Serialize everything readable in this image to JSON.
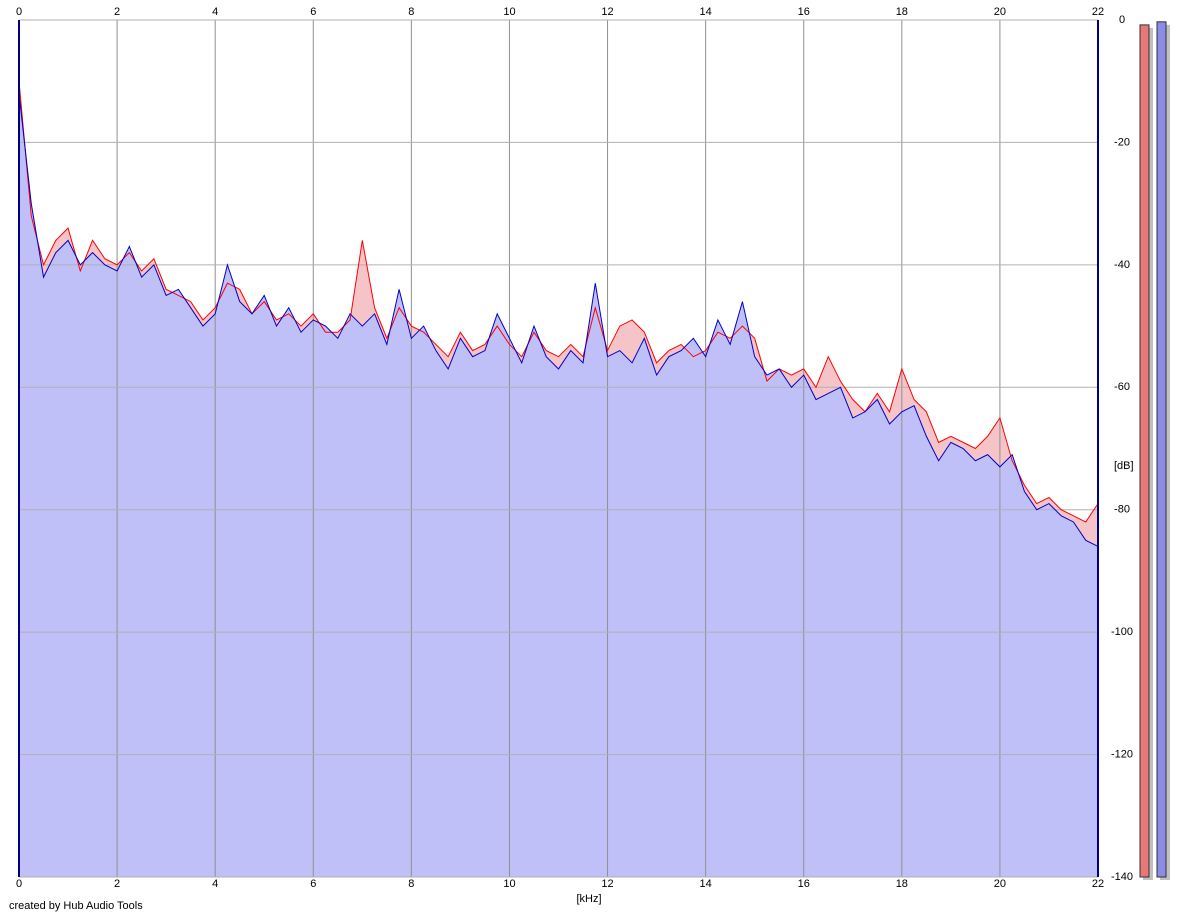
{
  "chart_data": {
    "type": "area",
    "x_label": "[kHz]",
    "y_label": "[dB]",
    "credit": "created by Hub Audio Tools",
    "x": [
      0,
      0.25,
      0.5,
      0.75,
      1,
      1.25,
      1.5,
      1.75,
      2,
      2.25,
      2.5,
      2.75,
      3,
      3.25,
      3.5,
      3.75,
      4,
      4.25,
      4.5,
      4.75,
      5,
      5.25,
      5.5,
      5.75,
      6,
      6.25,
      6.5,
      6.75,
      7,
      7.25,
      7.5,
      7.75,
      8,
      8.25,
      8.5,
      8.75,
      9,
      9.25,
      9.5,
      9.75,
      10,
      10.25,
      10.5,
      10.75,
      11,
      11.25,
      11.5,
      11.75,
      12,
      12.25,
      12.5,
      12.75,
      13,
      13.25,
      13.5,
      13.75,
      14,
      14.25,
      14.5,
      14.75,
      15,
      15.25,
      15.5,
      15.75,
      16,
      16.25,
      16.5,
      16.75,
      17,
      17.25,
      17.5,
      17.75,
      18,
      18.25,
      18.5,
      18.75,
      19,
      19.25,
      19.5,
      19.75,
      20,
      20.25,
      20.5,
      20.75,
      21,
      21.25,
      21.5,
      21.75,
      22
    ],
    "series": [
      {
        "color": "#ff0000",
        "fill": "#f4c4c8",
        "values": [
          -10,
          -32,
          -40,
          -36,
          -34,
          -41,
          -36,
          -39,
          -40,
          -38,
          -41,
          -39,
          -44,
          -45,
          -46,
          -49,
          -47,
          -43,
          -44,
          -48,
          -46,
          -49,
          -48,
          -50,
          -48,
          -51,
          -51,
          -49,
          -36,
          -47,
          -52,
          -47,
          -50,
          -51,
          -53,
          -55,
          -51,
          -54,
          -53,
          -50,
          -53,
          -55,
          -51,
          -54,
          -55,
          -53,
          -55,
          -47,
          -54,
          -50,
          -49,
          -51,
          -56,
          -54,
          -53,
          -55,
          -54,
          -51,
          -52,
          -50,
          -52,
          -59,
          -57,
          -58,
          -57,
          -60,
          -55,
          -59,
          -62,
          -64,
          -61,
          -64,
          -57,
          -62,
          -64,
          -69,
          -68,
          -69,
          -70,
          -68,
          -65,
          -72,
          -76,
          -79,
          -78,
          -80,
          -81,
          -82,
          -79
        ]
      },
      {
        "color": "#0000c8",
        "fill": "#c0c0f8",
        "values": [
          -12,
          -30,
          -42,
          -38,
          -36,
          -40,
          -38,
          -40,
          -41,
          -37,
          -42,
          -40,
          -45,
          -44,
          -47,
          -50,
          -48,
          -40,
          -46,
          -48,
          -45,
          -50,
          -47,
          -51,
          -49,
          -50,
          -52,
          -48,
          -50,
          -48,
          -53,
          -44,
          -52,
          -50,
          -54,
          -57,
          -52,
          -55,
          -54,
          -48,
          -52,
          -56,
          -50,
          -55,
          -57,
          -54,
          -56,
          -43,
          -55,
          -54,
          -56,
          -52,
          -58,
          -55,
          -54,
          -52,
          -55,
          -49,
          -53,
          -46,
          -55,
          -58,
          -57,
          -60,
          -58,
          -62,
          -61,
          -60,
          -65,
          -64,
          -62,
          -66,
          -64,
          -63,
          -68,
          -72,
          -69,
          -70,
          -72,
          -71,
          -73,
          -71,
          -77,
          -80,
          -79,
          -81,
          -82,
          -85,
          -86
        ]
      }
    ],
    "xlim": [
      0,
      22
    ],
    "xticks": [
      0,
      2,
      4,
      6,
      8,
      10,
      12,
      14,
      16,
      18,
      20,
      22
    ],
    "ylim": [
      -140,
      0
    ],
    "yticks": [
      0,
      -20,
      -40,
      -60,
      -80,
      -100,
      -120,
      -140
    ],
    "grid": true,
    "meters": [
      {
        "color": "#e87878",
        "value": -0.8
      },
      {
        "color": "#8c8ce8",
        "value": -0.3
      }
    ]
  }
}
